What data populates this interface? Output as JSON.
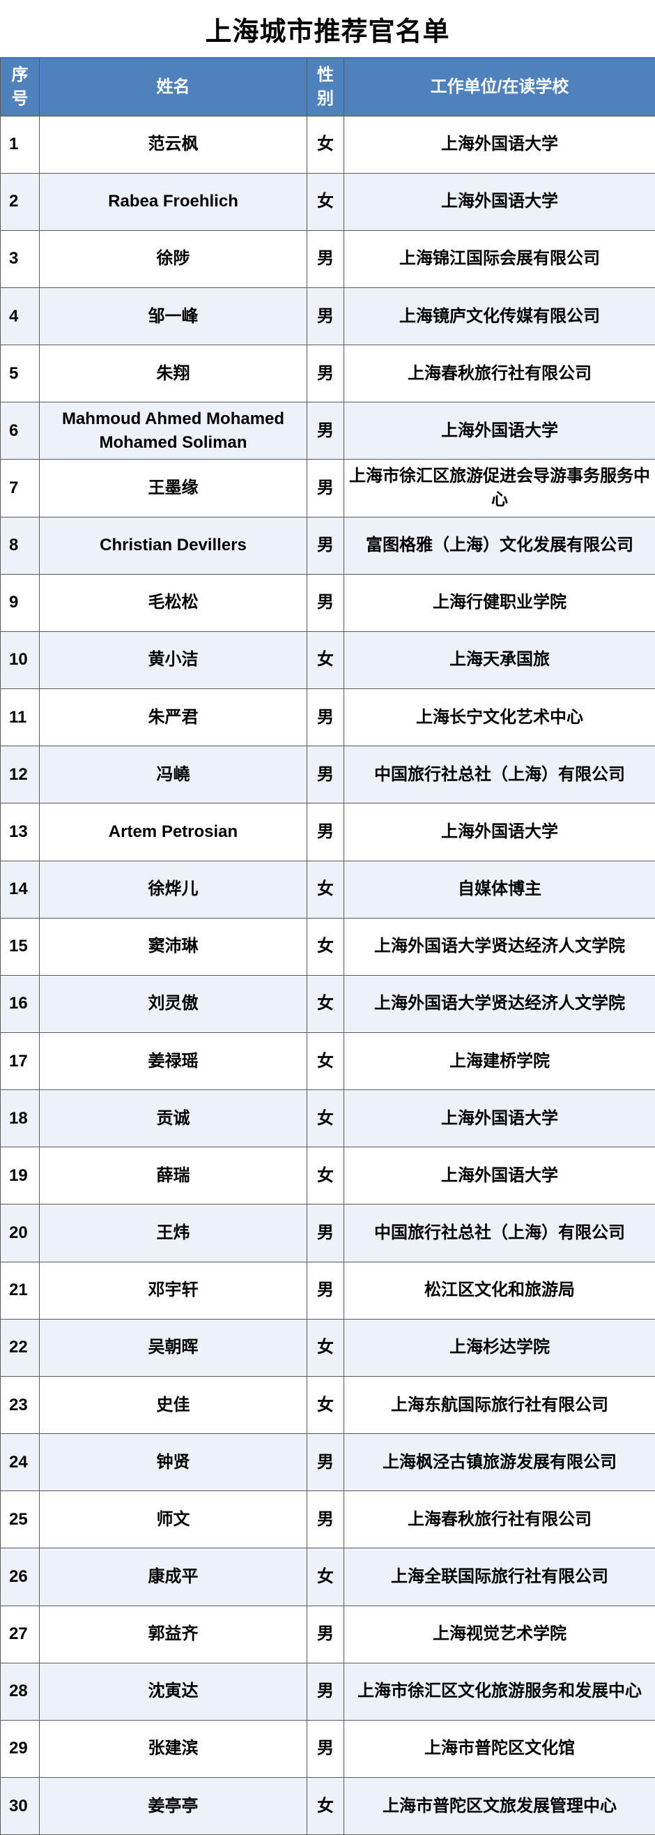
{
  "title": "上海城市推荐官名单",
  "colors": {
    "header_bg": "#4f81bd",
    "alt_row_bg": "#edf2f9",
    "header_text": "#ffffff"
  },
  "columns": {
    "index": "序号",
    "name": "姓名",
    "gender": "性别",
    "org": "工作单位/在读学校"
  },
  "rows": [
    {
      "no": "1",
      "name": "范云枫",
      "gender": "女",
      "org": "上海外国语大学"
    },
    {
      "no": "2",
      "name": "Rabea Froehlich",
      "gender": "女",
      "org": "上海外国语大学"
    },
    {
      "no": "3",
      "name": "徐陟",
      "gender": "男",
      "org": "上海锦江国际会展有限公司"
    },
    {
      "no": "4",
      "name": "邹一峰",
      "gender": "男",
      "org": "上海镜庐文化传媒有限公司"
    },
    {
      "no": "5",
      "name": "朱翔",
      "gender": "男",
      "org": "上海春秋旅行社有限公司"
    },
    {
      "no": "6",
      "name": "Mahmoud Ahmed Mohamed Mohamed Soliman",
      "gender": "男",
      "org": "上海外国语大学"
    },
    {
      "no": "7",
      "name": "王墨缘",
      "gender": "男",
      "org": "上海市徐汇区旅游促进会导游事务服务中心"
    },
    {
      "no": "8",
      "name": "Christian Devillers",
      "gender": "男",
      "org": "富图格雅（上海）文化发展有限公司"
    },
    {
      "no": "9",
      "name": "毛松松",
      "gender": "男",
      "org": "上海行健职业学院"
    },
    {
      "no": "10",
      "name": "黄小洁",
      "gender": "女",
      "org": "上海天承国旅"
    },
    {
      "no": "11",
      "name": "朱严君",
      "gender": "男",
      "org": "上海长宁文化艺术中心"
    },
    {
      "no": "12",
      "name": "冯嶢",
      "gender": "男",
      "org": "中国旅行社总社（上海）有限公司"
    },
    {
      "no": "13",
      "name": "Artem Petrosian",
      "gender": "男",
      "org": "上海外国语大学"
    },
    {
      "no": "14",
      "name": "徐烨儿",
      "gender": "女",
      "org": "自媒体博主"
    },
    {
      "no": "15",
      "name": "窦沛琳",
      "gender": "女",
      "org": "上海外国语大学贤达经济人文学院"
    },
    {
      "no": "16",
      "name": "刘灵傲",
      "gender": "女",
      "org": "上海外国语大学贤达经济人文学院"
    },
    {
      "no": "17",
      "name": "姜禄瑶",
      "gender": "女",
      "org": "上海建桥学院"
    },
    {
      "no": "18",
      "name": "贡诚",
      "gender": "女",
      "org": "上海外国语大学"
    },
    {
      "no": "19",
      "name": "薛瑞",
      "gender": "女",
      "org": "上海外国语大学"
    },
    {
      "no": "20",
      "name": "王炜",
      "gender": "男",
      "org": "中国旅行社总社（上海）有限公司"
    },
    {
      "no": "21",
      "name": "邓宇轩",
      "gender": "男",
      "org": "松江区文化和旅游局"
    },
    {
      "no": "22",
      "name": "吴朝晖",
      "gender": "女",
      "org": "上海杉达学院"
    },
    {
      "no": "23",
      "name": "史佳",
      "gender": "女",
      "org": "上海东航国际旅行社有限公司"
    },
    {
      "no": "24",
      "name": "钟贤",
      "gender": "男",
      "org": "上海枫泾古镇旅游发展有限公司"
    },
    {
      "no": "25",
      "name": "师文",
      "gender": "男",
      "org": "上海春秋旅行社有限公司"
    },
    {
      "no": "26",
      "name": "康成平",
      "gender": "女",
      "org": "上海全联国际旅行社有限公司"
    },
    {
      "no": "27",
      "name": "郭益齐",
      "gender": "男",
      "org": "上海视觉艺术学院"
    },
    {
      "no": "28",
      "name": "沈寅达",
      "gender": "男",
      "org": "上海市徐汇区文化旅游服务和发展中心"
    },
    {
      "no": "29",
      "name": "张建滨",
      "gender": "男",
      "org": "上海市普陀区文化馆"
    },
    {
      "no": "30",
      "name": "姜亭亭",
      "gender": "女",
      "org": "上海市普陀区文旅发展管理中心"
    }
  ]
}
